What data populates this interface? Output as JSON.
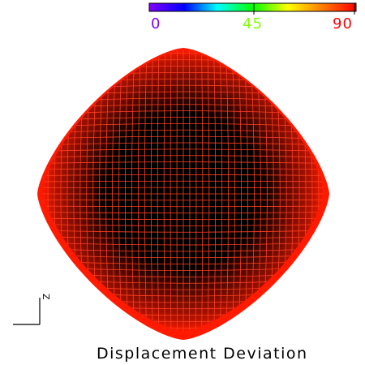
{
  "colorbar": {
    "min_label": "0",
    "mid_label": "45",
    "max_label": "90",
    "min_color": "#8000ff",
    "mid_color": "#80ff00",
    "max_color": "#ff0000",
    "gradient_stops": [
      "#8000ff",
      "#0000ff",
      "#00ffff",
      "#00ff00",
      "#ffff00",
      "#ff8000",
      "#ff0000"
    ]
  },
  "field": {
    "outer_color": "#ff1a00",
    "inner_color": "#b81200",
    "deep_color": "#000000",
    "mesh_color": "#ff4020"
  },
  "axis": {
    "label": "Z"
  },
  "caption": "Displacement Deviation"
}
